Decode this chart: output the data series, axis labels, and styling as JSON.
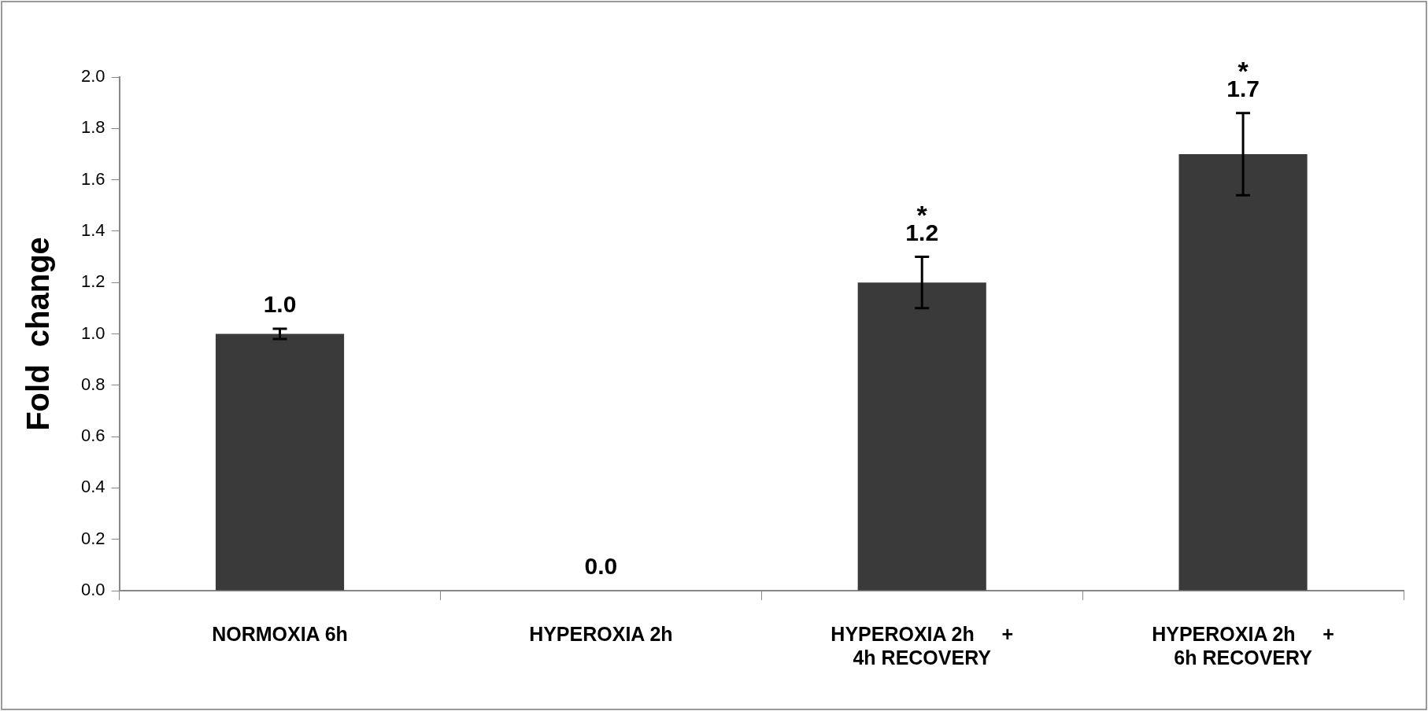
{
  "chart_data": {
    "type": "bar",
    "ylabel": "Fold  change",
    "categories": [
      "NORMOXIA 6h",
      "HYPEROXIA 2h",
      "HYPEROXIA 2h     +\n4h RECOVERY",
      "HYPEROXIA 2h     +\n6h RECOVERY"
    ],
    "values": [
      1.0,
      0.0,
      1.2,
      1.7
    ],
    "color": "#3a3a3a",
    "errors": [
      0.02,
      null,
      0.1,
      0.16
    ],
    "value_labels": [
      "1.0",
      "0.0",
      "1.2",
      "1.7"
    ],
    "annotations": [
      "*",
      "*"
    ],
    "ylim": [
      0,
      2.0
    ],
    "yticks": [
      {
        "value": 0,
        "label": "0.0"
      },
      {
        "value": 0.2,
        "label": "0.2"
      },
      {
        "value": 0.4,
        "label": "0.4"
      },
      {
        "value": 0.6,
        "label": "0.6"
      },
      {
        "value": 0.8,
        "label": "0.8"
      },
      {
        "value": 1.0,
        "label": "1.0"
      },
      {
        "value": 1.2,
        "label": "1.2"
      },
      {
        "value": 1.4,
        "label": "1.4"
      },
      {
        "value": 1.6,
        "label": "1.6"
      },
      {
        "value": 1.8,
        "label": "1.8"
      },
      {
        "value": 2.0,
        "label": "2.0"
      }
    ]
  }
}
